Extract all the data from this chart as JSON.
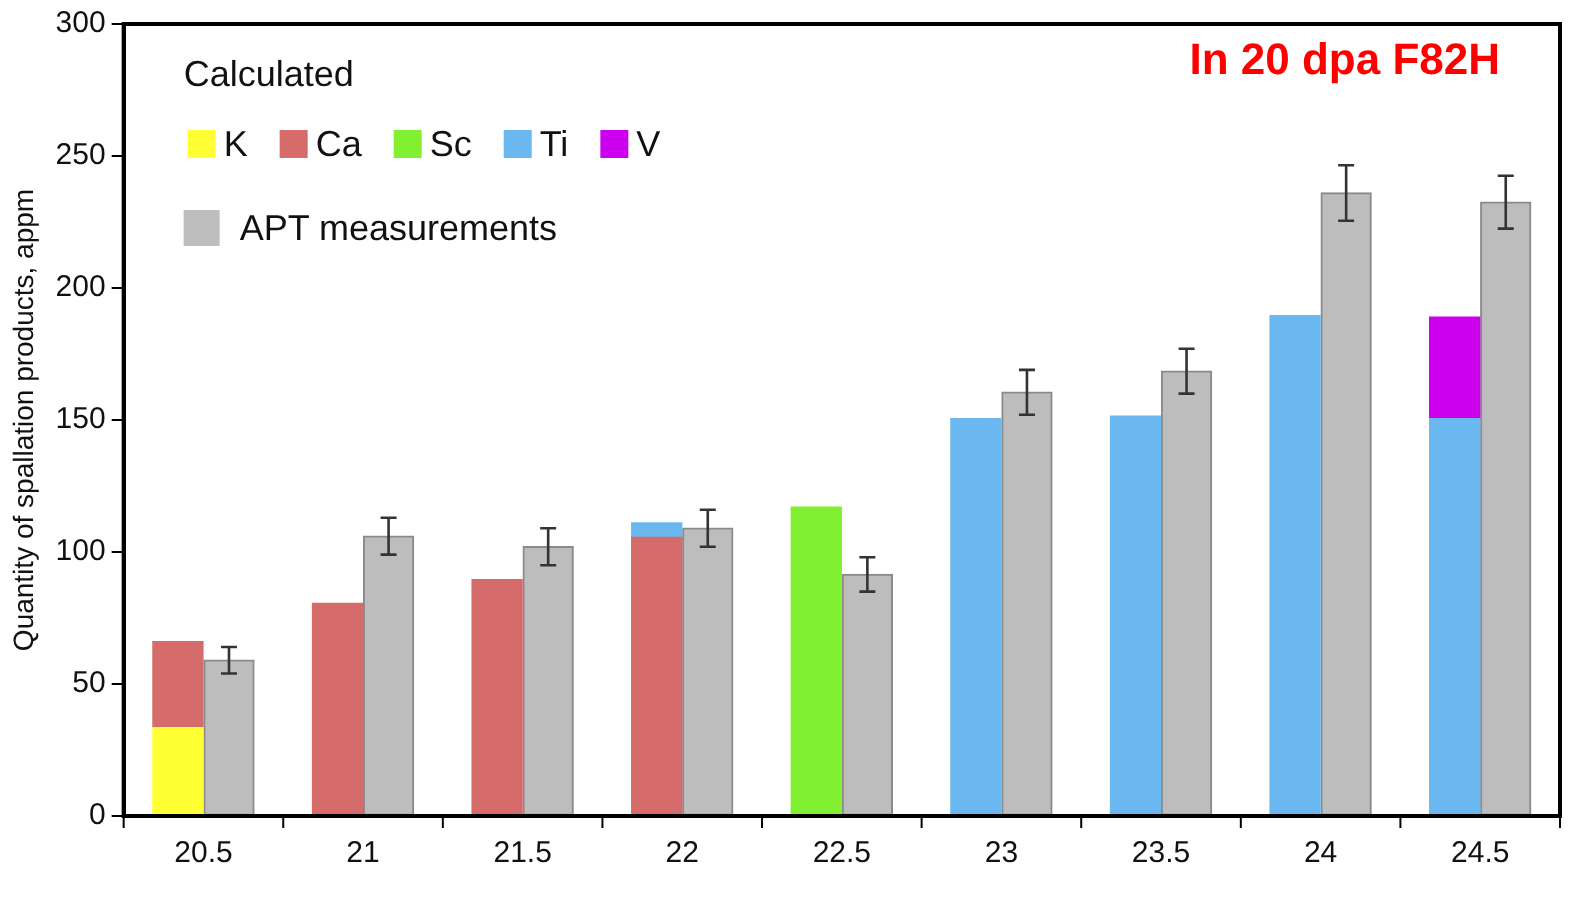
{
  "chart_data": {
    "type": "bar",
    "title": "In 20 dpa F82H",
    "ylabel": "Quantity of spallation products, appm",
    "legend_title": "Calculated",
    "categories": [
      "20.5",
      "21",
      "21.5",
      "22",
      "22.5",
      "23",
      "23.5",
      "24",
      "24.5"
    ],
    "legend": "top left",
    "ylim": [
      0,
      300
    ],
    "yticks": [
      0,
      50,
      100,
      150,
      200,
      250,
      300
    ],
    "series": [
      {
        "name": "K",
        "color": "#ffff33",
        "values": [
          33.5,
          null,
          null,
          null,
          null,
          null,
          null,
          null,
          null
        ]
      },
      {
        "name": "Ca",
        "color": "#d66b6b",
        "values": [
          32.5,
          80.5,
          89.5,
          105.5,
          null,
          null,
          null,
          null,
          null
        ],
        "base": [
          33.5,
          0,
          0,
          0,
          null,
          null,
          null,
          null,
          null
        ]
      },
      {
        "name": "Sc",
        "color": "#80f030",
        "values": [
          null,
          null,
          null,
          null,
          117,
          null,
          null,
          null,
          null
        ]
      },
      {
        "name": "Ti",
        "color": "#6bb8f0",
        "values": [
          null,
          null,
          null,
          5.5,
          null,
          150.5,
          151.5,
          189.5,
          150.5
        ],
        "base": [
          null,
          null,
          null,
          105.5,
          null,
          0,
          0,
          0,
          0
        ]
      },
      {
        "name": "V",
        "color": "#cc00ee",
        "values": [
          null,
          null,
          null,
          null,
          null,
          null,
          null,
          null,
          38.5
        ],
        "base": [
          null,
          null,
          null,
          null,
          null,
          null,
          null,
          null,
          150.5
        ]
      },
      {
        "name": "APT measurements",
        "color": "#bdbdbd",
        "values": [
          59,
          106,
          102,
          109,
          91.5,
          160.5,
          168.5,
          236,
          232.5
        ],
        "errors": [
          5,
          7,
          7,
          7,
          6.5,
          8.5,
          8.5,
          10.5,
          10
        ]
      }
    ]
  }
}
